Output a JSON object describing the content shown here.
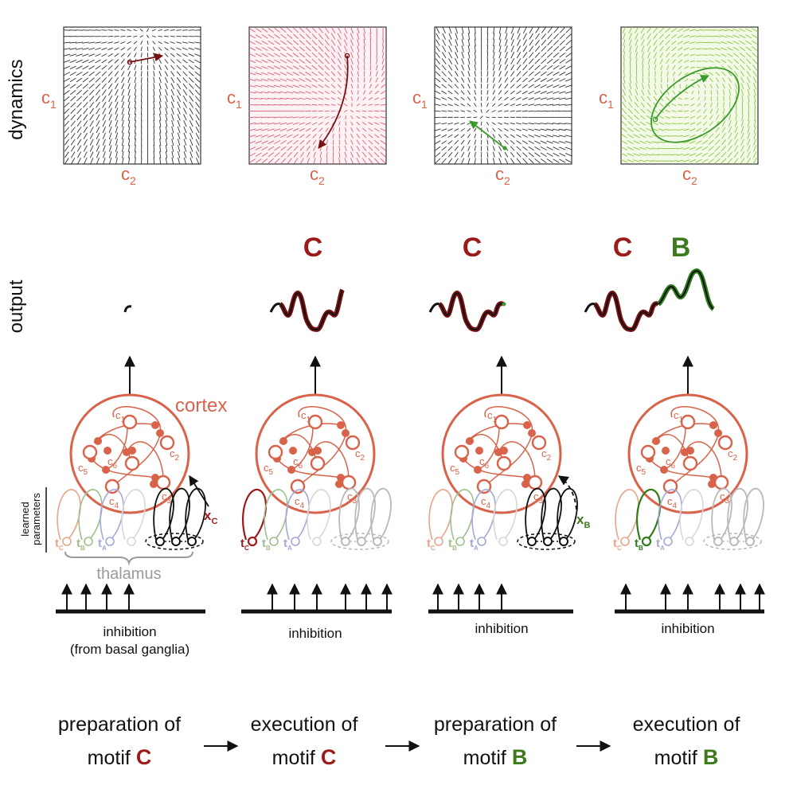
{
  "row_labels": {
    "dynamics": "dynamics",
    "output": "output"
  },
  "colors": {
    "dark_red": "#9b1b1b",
    "green": "#3d7a1e",
    "cortex": "#d8634a",
    "thalamus": "#9a9a9a"
  },
  "axis": {
    "y_main": "c",
    "y_sub": "1",
    "x_main": "c",
    "x_sub": "2"
  },
  "panels": [
    {
      "field_color": "#333333",
      "tint": "#ffffff"
    },
    {
      "field_color": "#d8607a",
      "tint": "#fff2f4"
    },
    {
      "field_color": "#333333",
      "tint": "#ffffff"
    },
    {
      "field_color": "#8cc63f",
      "tint": "#f3fae8"
    }
  ],
  "motif_labels": [
    {
      "text": "",
      "color": "#9b1b1b"
    },
    {
      "text": "C",
      "color": "#9b1b1b"
    },
    {
      "text": "C",
      "color": "#9b1b1b"
    },
    {
      "text": "C",
      "color": "#9b1b1b",
      "text2": "B",
      "color2": "#3d7a1e"
    }
  ],
  "cortex_label": "cortex",
  "cortex_nodes": [
    {
      "main": "c",
      "sub": "1"
    },
    {
      "main": "c",
      "sub": "2"
    },
    {
      "main": "c",
      "sub": "3"
    },
    {
      "main": "c",
      "sub": "4"
    },
    {
      "main": "c",
      "sub": "5"
    },
    {
      "main": "c",
      "sub": "6"
    }
  ],
  "thalamic_units": [
    {
      "main": "t",
      "sub": "C"
    },
    {
      "main": "t",
      "sub": "B"
    },
    {
      "main": "t",
      "sub": "A"
    }
  ],
  "learned_parameters": [
    "learned",
    "parameters"
  ],
  "thalamus_label": "thalamus",
  "input_labels": [
    {
      "main": "x",
      "sub": "C",
      "color": "#9b1b1b"
    },
    {
      "main": "x",
      "sub": "B",
      "color": "#3d7a1e"
    }
  ],
  "inhibition": [
    {
      "line1": "inhibition",
      "line2": "(from basal ganglia)"
    },
    {
      "line1": "inhibition",
      "line2": ""
    },
    {
      "line1": "inhibition",
      "line2": ""
    },
    {
      "line1": "inhibition",
      "line2": ""
    }
  ],
  "captions": [
    {
      "line1": "preparation of",
      "line2": "motif",
      "motif": "C",
      "color": "#9b1b1b"
    },
    {
      "line1": "execution of",
      "line2": "motif",
      "motif": "C",
      "color": "#9b1b1b"
    },
    {
      "line1": "preparation of",
      "line2": "motif",
      "motif": "B",
      "color": "#3d7a1e"
    },
    {
      "line1": "execution of",
      "line2": "motif",
      "motif": "B",
      "color": "#3d7a1e"
    }
  ]
}
